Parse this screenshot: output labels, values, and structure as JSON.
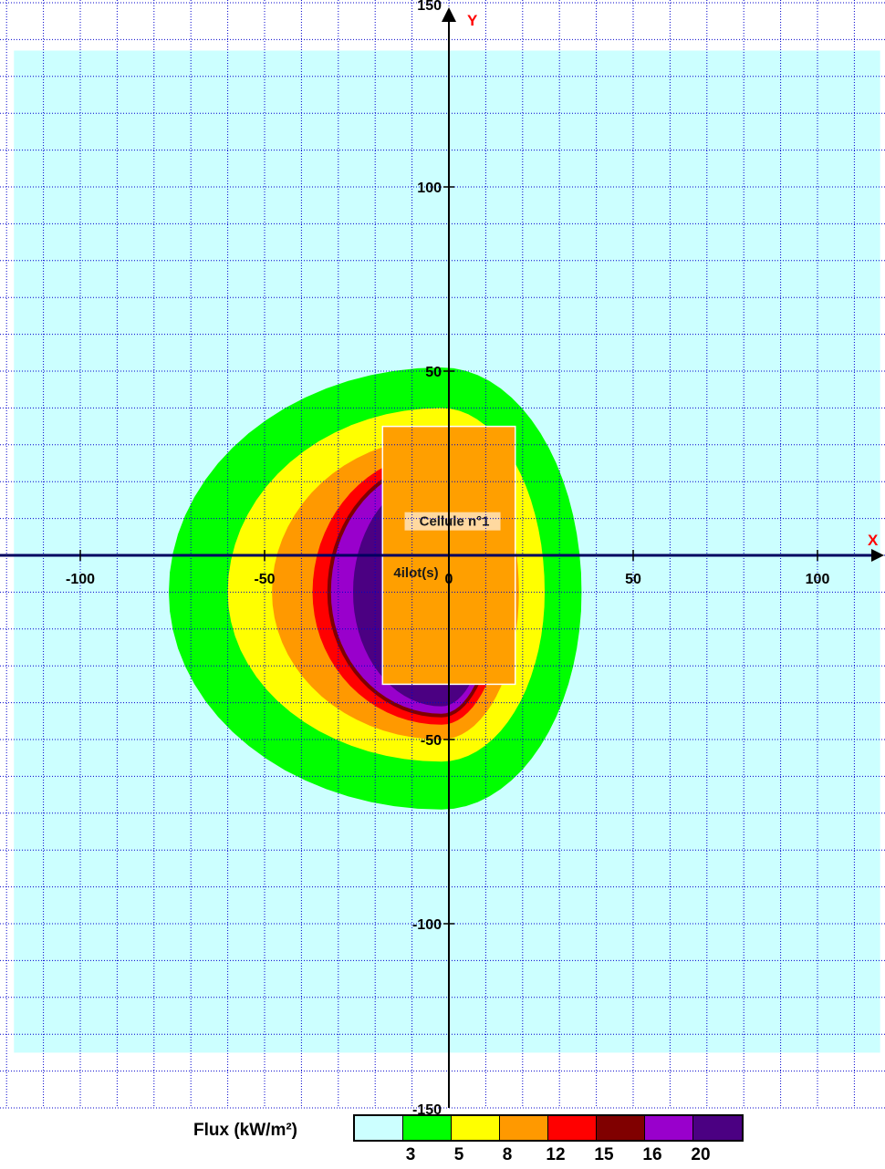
{
  "chart_data": {
    "type": "heatmap",
    "xlabel": "X",
    "ylabel": "Y",
    "xlim": [
      -118,
      117
    ],
    "ylim": [
      -150,
      150
    ],
    "x_ticks": [
      -100,
      -50,
      0,
      50,
      100
    ],
    "y_ticks": [
      100,
      50,
      -50,
      -100
    ],
    "y_tick_partial": [
      "150",
      "-150"
    ],
    "grid": true,
    "grid_step": 10,
    "legend": {
      "title": "Flux (kW/m²)",
      "thresholds": [
        "3",
        "5",
        "8",
        "12",
        "15",
        "16",
        "20"
      ],
      "colors": [
        "#ccffff",
        "#00ff00",
        "#ffff00",
        "#ff9900",
        "#ff0000",
        "#800000",
        "#9900cc",
        "#4b0082"
      ],
      "placement": "bottom"
    },
    "zones": [
      {
        "flux": "3",
        "color": "#ccffff",
        "extent": {
          "x": [
            -118,
            117
          ],
          "y": [
            -135,
            137
          ]
        }
      },
      {
        "flux": "5",
        "color": "#00ff00",
        "center": [
          -2,
          -10
        ],
        "rx": [
          74,
          38
        ],
        "ry": [
          59,
          61
        ]
      },
      {
        "flux": "8",
        "color": "#ffff00",
        "center": [
          -2,
          -10
        ],
        "rx": [
          58,
          28
        ],
        "ry": [
          46,
          50
        ]
      },
      {
        "flux": "12",
        "color": "#ff9900",
        "center": [
          -2,
          -10
        ],
        "rx": [
          46,
          21
        ],
        "ry": [
          40,
          42
        ]
      },
      {
        "flux": "15",
        "color": "#ff0000",
        "center": [
          -2,
          -10
        ],
        "rx": [
          35,
          17
        ],
        "ry": [
          36,
          38
        ]
      },
      {
        "flux": "16",
        "color": "#800000",
        "center": [
          -2,
          -10
        ],
        "rx": [
          31,
          15
        ],
        "ry": [
          34,
          36
        ]
      },
      {
        "flux": "20",
        "color": "#9900cc",
        "center": [
          -2,
          -10
        ],
        "rx": [
          30,
          14
        ],
        "ry": [
          33,
          35
        ]
      },
      {
        "flux": "20+",
        "color": "#4b0082",
        "center": [
          -2,
          -10
        ],
        "rx": [
          24,
          13
        ],
        "ry": [
          31,
          32
        ]
      }
    ],
    "cell": {
      "label": "Cellule n°1",
      "color": "#ff9f00",
      "x": [
        -18,
        18
      ],
      "y": [
        -35,
        35
      ]
    },
    "ilot_label": "4ilot(s)"
  }
}
